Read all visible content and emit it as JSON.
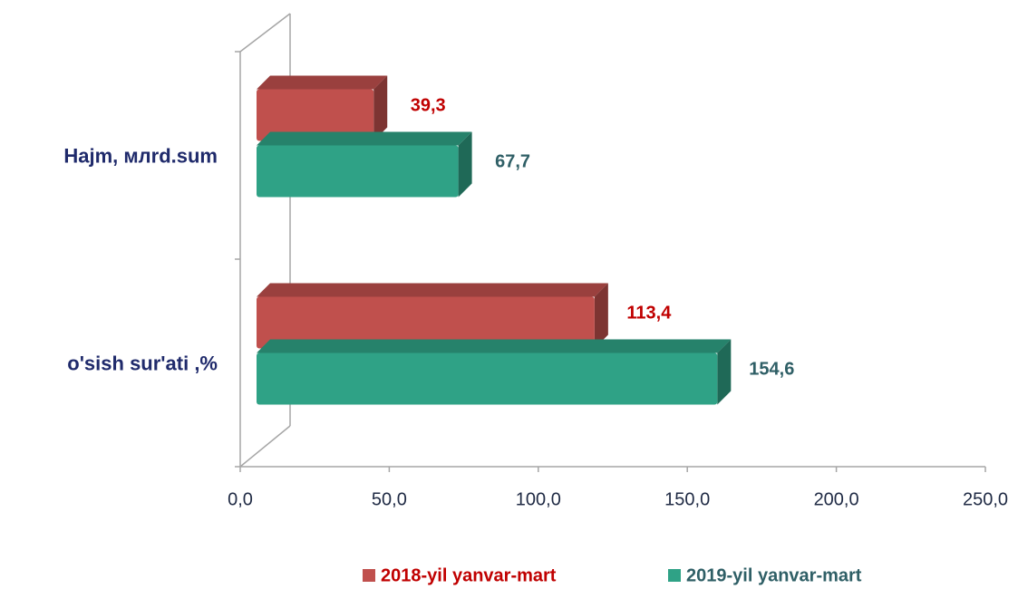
{
  "chart_data": {
    "type": "bar3d_horizontal",
    "categories": [
      "Hajm, млrd.sum",
      "o'sish  sur'ati ,%"
    ],
    "series": [
      {
        "name": "2018-yil yanvar-mart",
        "color": "#c0504d",
        "label_color": "#c00000",
        "values": [
          39.3,
          113.4
        ],
        "value_labels": [
          "39,3",
          "113,4"
        ]
      },
      {
        "name": "2019-yil yanvar-mart",
        "color": "#2fa286",
        "label_color": "#2f5f66",
        "values": [
          67.7,
          154.6
        ],
        "value_labels": [
          "67,7",
          "154,6"
        ]
      }
    ],
    "xlim": [
      0,
      250
    ],
    "xticks": [
      {
        "value": 0,
        "label": "0,0"
      },
      {
        "value": 50,
        "label": "50,0"
      },
      {
        "value": 100,
        "label": "100,0"
      },
      {
        "value": 150,
        "label": "150,0"
      },
      {
        "value": 200,
        "label": "200,0"
      },
      {
        "value": 250,
        "label": "250,0"
      }
    ],
    "legend": "bottom"
  }
}
